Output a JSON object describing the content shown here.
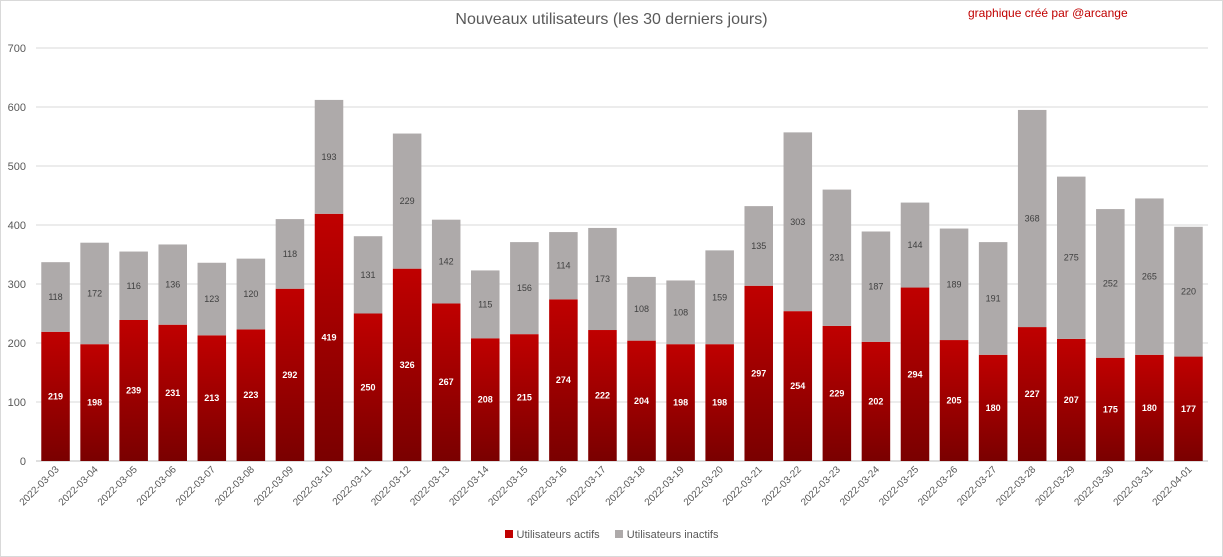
{
  "header": {
    "title": "Nouveaux utilisateurs  (les 30 derniers  jours)",
    "credit": "graphique créé par @arcange"
  },
  "colors": {
    "active": "#c00000",
    "inactive": "#aeaaaa",
    "credit": "#c00000"
  },
  "chart_data": {
    "type": "bar",
    "stacked": true,
    "title": "Nouveaux utilisateurs  (les 30 derniers  jours)",
    "xlabel": "",
    "ylabel": "",
    "ylim": [
      0,
      700
    ],
    "yticks": [
      0,
      100,
      200,
      300,
      400,
      500,
      600,
      700
    ],
    "grid": true,
    "legend_position": "bottom",
    "categories": [
      "2022-03-03",
      "2022-03-04",
      "2022-03-05",
      "2022-03-06",
      "2022-03-07",
      "2022-03-08",
      "2022-03-09",
      "2022-03-10",
      "2022-03-11",
      "2022-03-12",
      "2022-03-13",
      "2022-03-14",
      "2022-03-15",
      "2022-03-16",
      "2022-03-17",
      "2022-03-18",
      "2022-03-19",
      "2022-03-20",
      "2022-03-21",
      "2022-03-22",
      "2022-03-23",
      "2022-03-24",
      "2022-03-25",
      "2022-03-26",
      "2022-03-27",
      "2022-03-28",
      "2022-03-29",
      "2022-03-30",
      "2022-03-31",
      "2022-04-01"
    ],
    "series": [
      {
        "name": "Utilisateurs actifs",
        "values": [
          219,
          198,
          239,
          231,
          213,
          223,
          292,
          419,
          250,
          326,
          267,
          208,
          215,
          274,
          222,
          204,
          198,
          198,
          297,
          254,
          229,
          202,
          294,
          205,
          180,
          227,
          207,
          175,
          180,
          177
        ]
      },
      {
        "name": "Utilisateurs inactifs",
        "values": [
          118,
          172,
          116,
          136,
          123,
          120,
          118,
          193,
          131,
          229,
          142,
          115,
          156,
          114,
          173,
          108,
          108,
          159,
          135,
          303,
          231,
          187,
          144,
          189,
          191,
          368,
          275,
          252,
          265,
          220
        ]
      }
    ]
  }
}
